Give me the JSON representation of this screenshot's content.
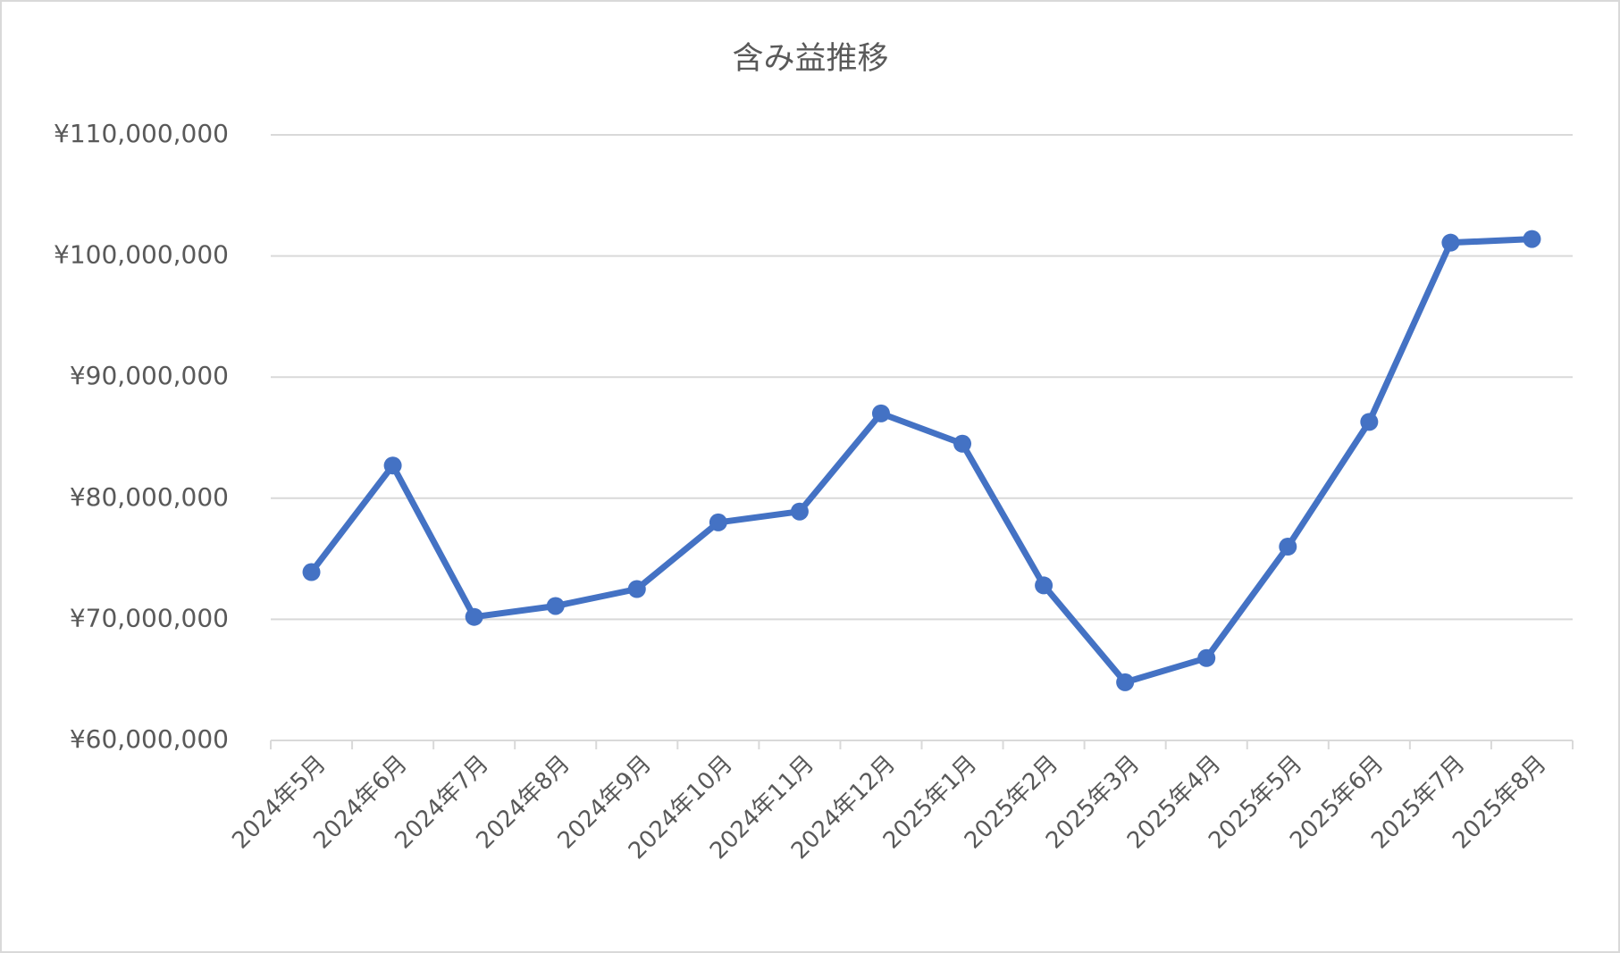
{
  "chart_data": {
    "type": "line",
    "title": "含み益推移",
    "categories": [
      "2024年5月",
      "2024年6月",
      "2024年7月",
      "2024年8月",
      "2024年9月",
      "2024年10月",
      "2024年11月",
      "2024年12月",
      "2025年1月",
      "2025年2月",
      "2025年3月",
      "2025年4月",
      "2025年5月",
      "2025年6月",
      "2025年7月",
      "2025年8月"
    ],
    "values": [
      73900000,
      82700000,
      70200000,
      71100000,
      72500000,
      78000000,
      78900000,
      87000000,
      84500000,
      72800000,
      64800000,
      66800000,
      76000000,
      86300000,
      101100000,
      101400000
    ],
    "color": "#4472c4",
    "ylim": [
      60000000,
      110000000
    ],
    "yticks": [
      {
        "value": 60000000,
        "label": "¥60,000,000"
      },
      {
        "value": 70000000,
        "label": "¥70,000,000"
      },
      {
        "value": 80000000,
        "label": "¥80,000,000"
      },
      {
        "value": 90000000,
        "label": "¥90,000,000"
      },
      {
        "value": 100000000,
        "label": "¥100,000,000"
      },
      {
        "value": 110000000,
        "label": "¥110,000,000"
      }
    ],
    "grid": true
  }
}
